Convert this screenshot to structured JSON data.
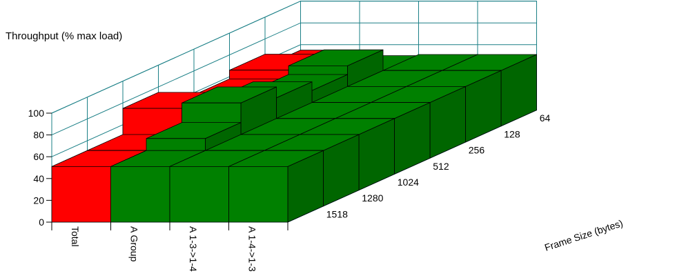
{
  "chart_data": {
    "type": "bar",
    "title": "",
    "ylabel": "Throughput (% max load)",
    "zlabel": "Frame Size (bytes)",
    "ylim": [
      0,
      100
    ],
    "yticks": [
      "0",
      "20",
      "40",
      "60",
      "80",
      "100"
    ],
    "categories": [
      "Total",
      "A Group",
      "A 1-3->1-4",
      "A 1-4->1-3"
    ],
    "frame_sizes": [
      "1518",
      "1280",
      "1024",
      "512",
      "256",
      "128",
      "64"
    ],
    "series": [
      {
        "category": "Total",
        "frame_size": "1518",
        "value": 51
      },
      {
        "category": "A Group",
        "frame_size": "1518",
        "value": 51
      },
      {
        "category": "A 1-3->1-4",
        "frame_size": "1518",
        "value": 51
      },
      {
        "category": "A 1-4->1-3",
        "frame_size": "1518",
        "value": 51
      },
      {
        "category": "Total",
        "frame_size": "1280",
        "value": 51
      },
      {
        "category": "A Group",
        "frame_size": "1280",
        "value": 62
      },
      {
        "category": "A 1-3->1-4",
        "frame_size": "1280",
        "value": 51
      },
      {
        "category": "A 1-4->1-3",
        "frame_size": "1280",
        "value": 51
      },
      {
        "category": "Total",
        "frame_size": "1024",
        "value": 75
      },
      {
        "category": "A Group",
        "frame_size": "1024",
        "value": 80
      },
      {
        "category": "A 1-3->1-4",
        "frame_size": "1024",
        "value": 51
      },
      {
        "category": "A 1-4->1-3",
        "frame_size": "1024",
        "value": 51
      },
      {
        "category": "Total",
        "frame_size": "512",
        "value": 51
      },
      {
        "category": "A Group",
        "frame_size": "512",
        "value": 70
      },
      {
        "category": "A 1-3->1-4",
        "frame_size": "512",
        "value": 51
      },
      {
        "category": "A 1-4->1-3",
        "frame_size": "512",
        "value": 51
      },
      {
        "category": "Total",
        "frame_size": "256",
        "value": 58
      },
      {
        "category": "A Group",
        "frame_size": "256",
        "value": 62
      },
      {
        "category": "A 1-3->1-4",
        "frame_size": "256",
        "value": 51
      },
      {
        "category": "A 1-4->1-3",
        "frame_size": "256",
        "value": 51
      },
      {
        "category": "Total",
        "frame_size": "128",
        "value": 66
      },
      {
        "category": "A Group",
        "frame_size": "128",
        "value": 70
      },
      {
        "category": "A 1-3->1-4",
        "frame_size": "128",
        "value": 51
      },
      {
        "category": "A 1-4->1-3",
        "frame_size": "128",
        "value": 51
      },
      {
        "category": "Total",
        "frame_size": "64",
        "value": 55
      },
      {
        "category": "A Group",
        "frame_size": "64",
        "value": 50
      },
      {
        "category": "A 1-3->1-4",
        "frame_size": "64",
        "value": 51
      },
      {
        "category": "A 1-4->1-3",
        "frame_size": "64",
        "value": 51
      }
    ],
    "colors": {
      "Total": "#ff0000",
      "A Group": "#008000",
      "A 1-3->1-4": "#008000",
      "A 1-4->1-3": "#008000"
    },
    "grid": true,
    "legend": "none"
  }
}
